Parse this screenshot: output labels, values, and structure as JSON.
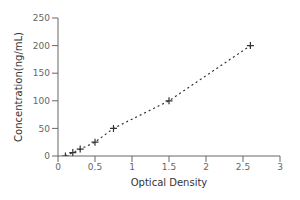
{
  "chart_data": {
    "type": "line",
    "x": [
      0.1,
      0.2,
      0.3,
      0.5,
      0.75,
      1.5,
      2.6
    ],
    "values": [
      0,
      6.25,
      12.5,
      25,
      50,
      100,
      200
    ],
    "xlabel": "Optical Density",
    "ylabel": "Concentration(ng/mL)",
    "xlim": [
      0,
      3
    ],
    "ylim": [
      0,
      250
    ],
    "xticks": [
      0,
      0.5,
      1,
      1.5,
      2,
      2.5,
      3
    ],
    "yticks": [
      0,
      50,
      100,
      150,
      200,
      250
    ],
    "color": "#333333",
    "marker": "plus",
    "line_style": "dotted"
  }
}
